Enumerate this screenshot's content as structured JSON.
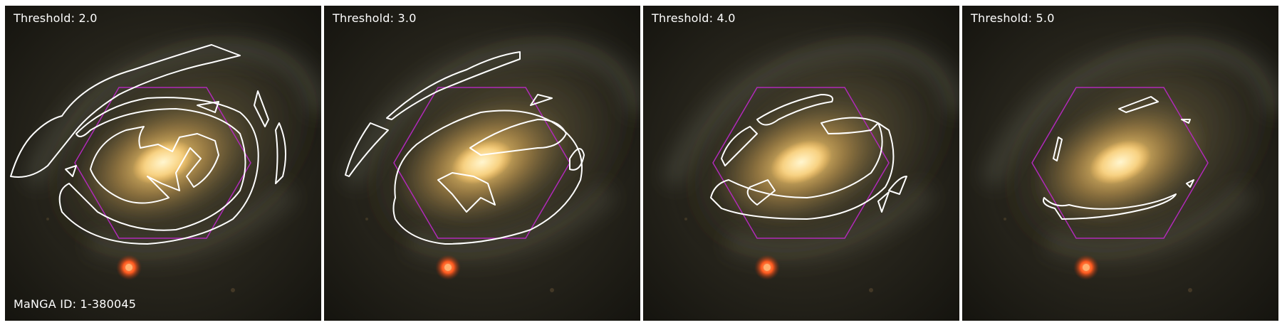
{
  "panels": [
    {
      "threshold_label": "Threshold: 2.0"
    },
    {
      "threshold_label": "Threshold: 3.0"
    },
    {
      "threshold_label": "Threshold: 4.0"
    },
    {
      "threshold_label": "Threshold: 5.0"
    }
  ],
  "galaxy_id_label": "MaNGA ID: 1-380045",
  "colors": {
    "contour": "#ffffff",
    "ifu_hexagon": "#b02ab8",
    "galaxy_core": "#ffe9a0",
    "foreground_star": "#ff5a1f",
    "background": "#1c1a14"
  }
}
